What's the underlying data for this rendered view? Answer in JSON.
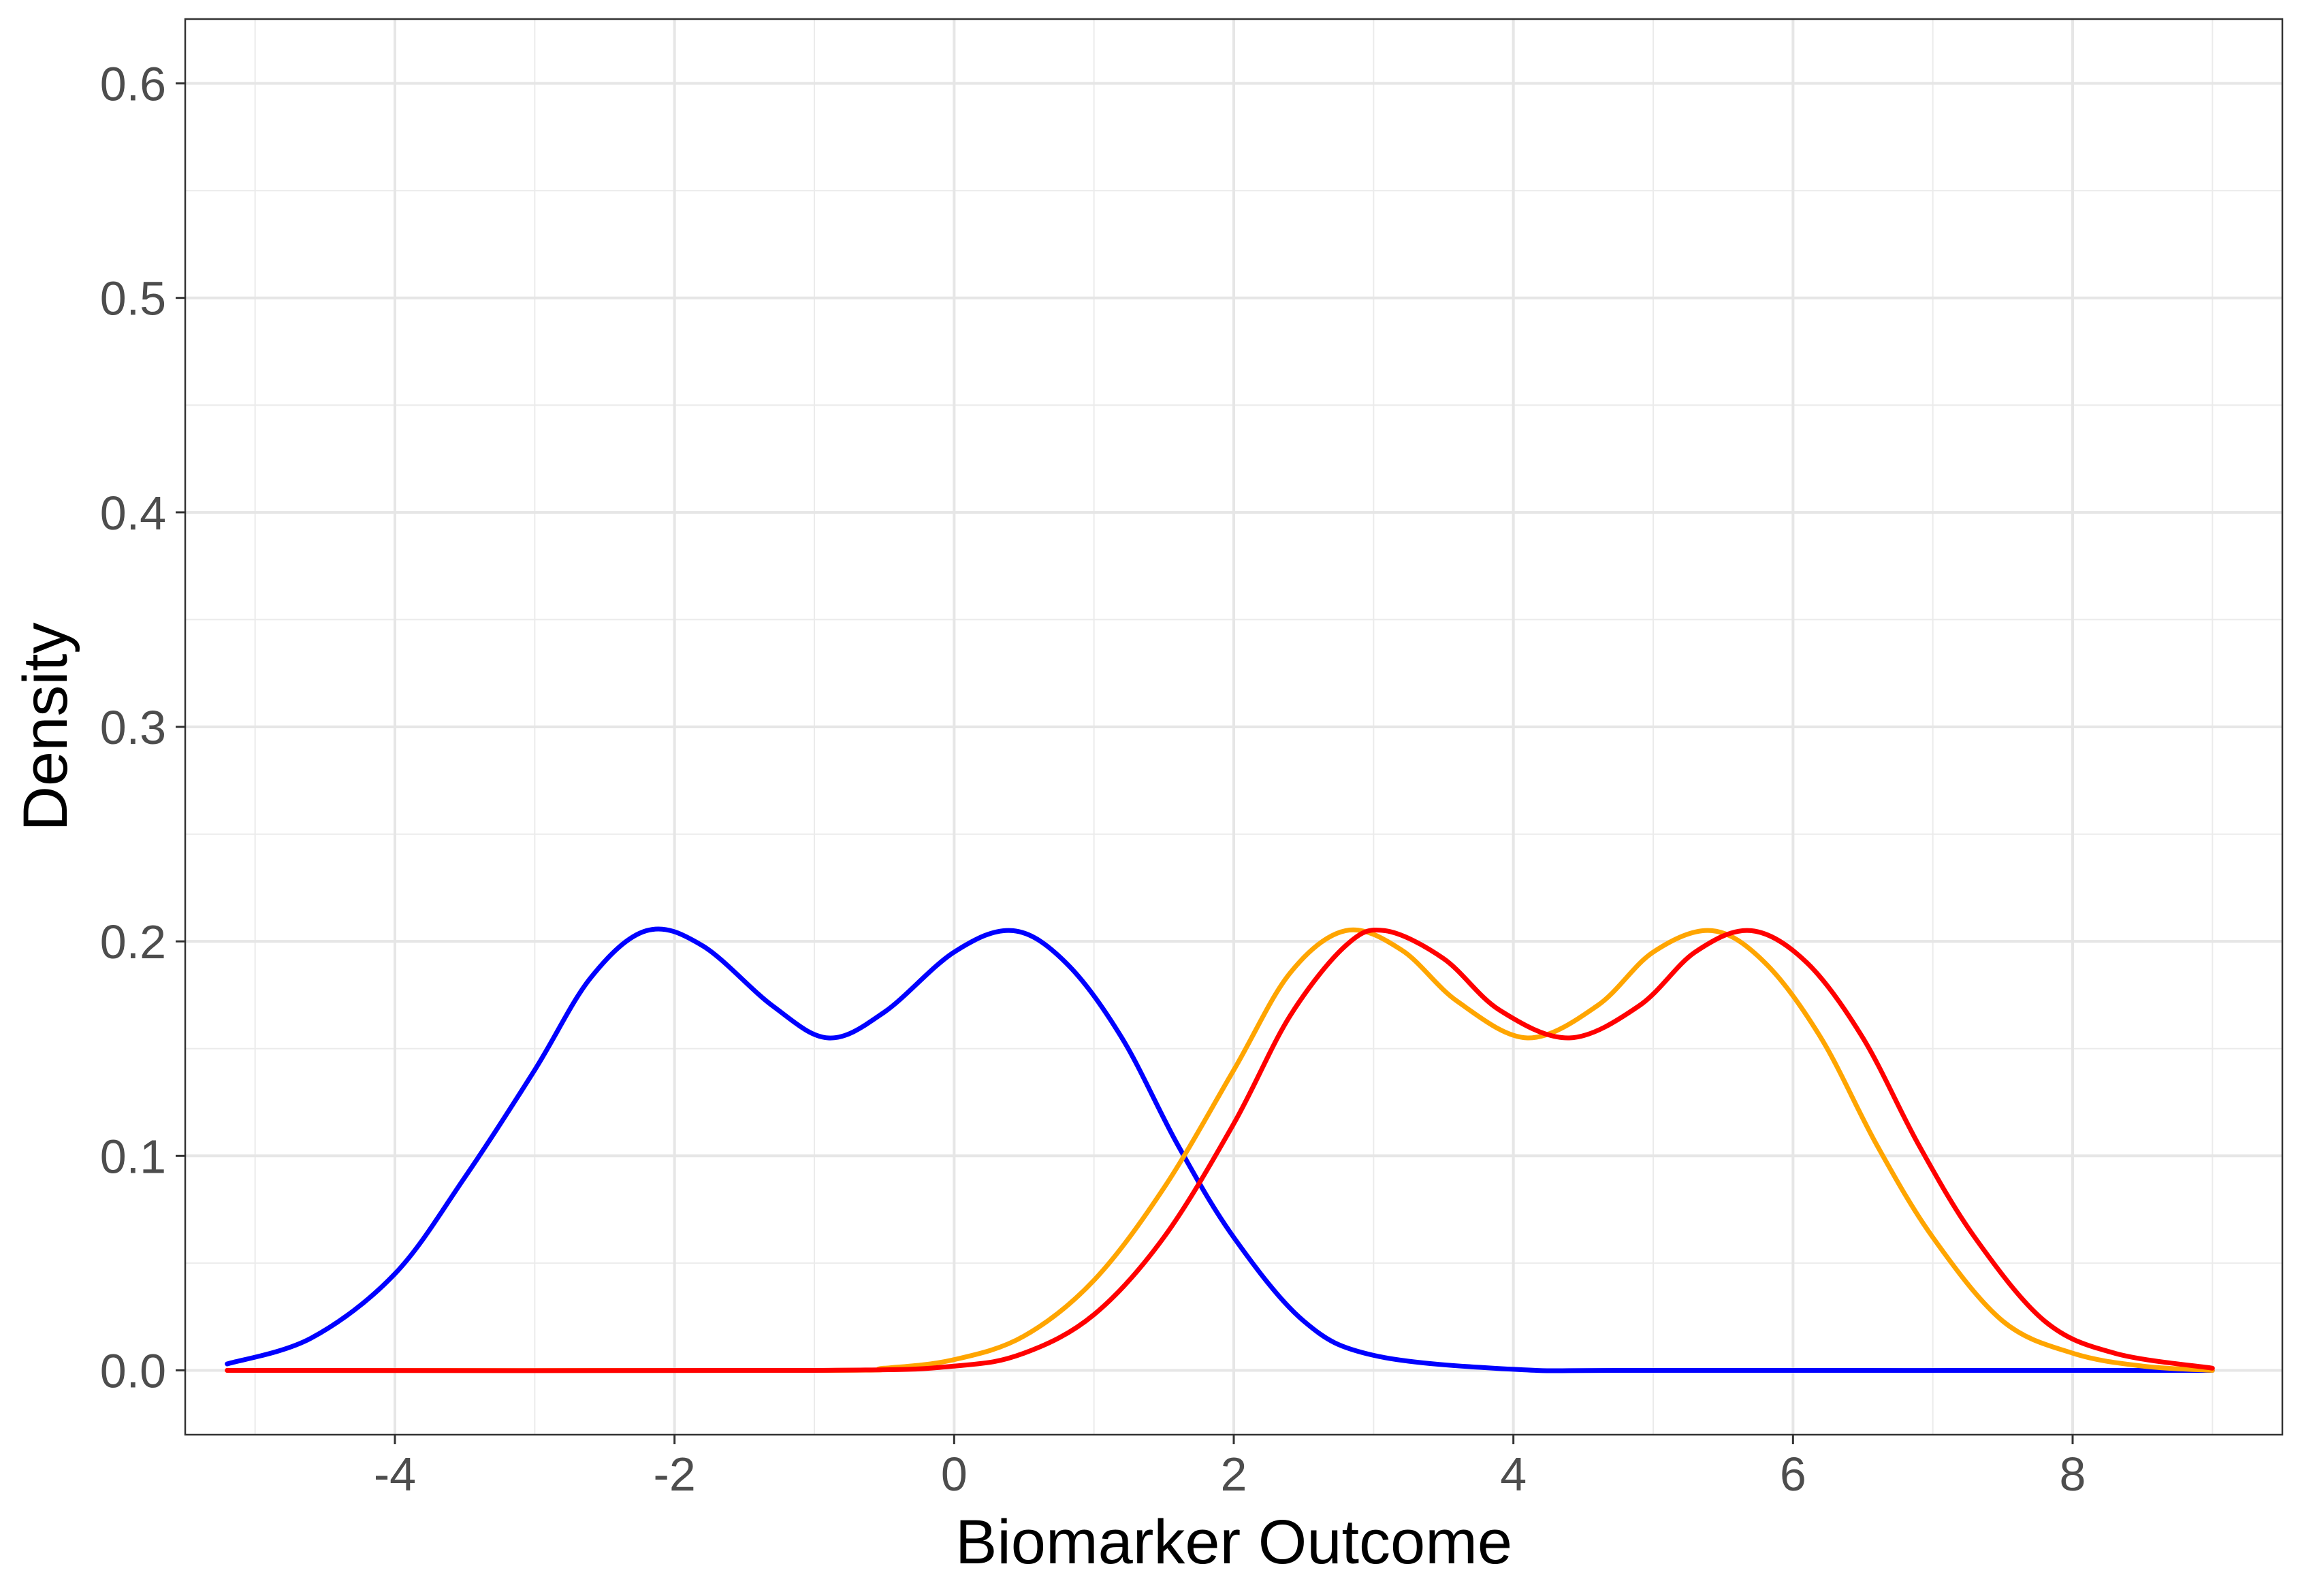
{
  "chart_data": {
    "type": "line",
    "title": "",
    "xlabel": "Biomarker Outcome",
    "ylabel": "Density",
    "xlim": [
      -5.5,
      9.5
    ],
    "ylim": [
      -0.03,
      0.63
    ],
    "x_ticks": [
      -4,
      -2,
      0,
      2,
      4,
      6,
      8
    ],
    "x_tick_labels": [
      "-4",
      "-2",
      "0",
      "2",
      "4",
      "6",
      "8"
    ],
    "y_ticks": [
      0.0,
      0.1,
      0.2,
      0.3,
      0.4,
      0.5,
      0.6
    ],
    "y_tick_labels": [
      "0.0",
      "0.1",
      "0.2",
      "0.3",
      "0.4",
      "0.5",
      "0.6"
    ],
    "grid": true,
    "legend": "none",
    "x_range": [
      -5.2,
      9.0
    ],
    "series": [
      {
        "color": "#0000ff",
        "points": [
          [
            -5.2,
            0.003
          ],
          [
            -4.6,
            0.015
          ],
          [
            -4.0,
            0.045
          ],
          [
            -3.5,
            0.09
          ],
          [
            -3.0,
            0.14
          ],
          [
            -2.6,
            0.183
          ],
          [
            -2.2,
            0.205
          ],
          [
            -1.8,
            0.198
          ],
          [
            -1.3,
            0.17
          ],
          [
            -0.9,
            0.155
          ],
          [
            -0.5,
            0.167
          ],
          [
            0.0,
            0.195
          ],
          [
            0.42,
            0.205
          ],
          [
            0.8,
            0.19
          ],
          [
            1.2,
            0.155
          ],
          [
            1.6,
            0.105
          ],
          [
            2.0,
            0.062
          ],
          [
            2.5,
            0.023
          ],
          [
            3.0,
            0.007
          ],
          [
            4.0,
            0.0005
          ],
          [
            5.0,
            0.0
          ],
          [
            9.0,
            0.0
          ]
        ]
      },
      {
        "color": "#ffa500",
        "points": [
          [
            -5.2,
            0.0
          ],
          [
            -1.0,
            0.0
          ],
          [
            -0.5,
            0.001
          ],
          [
            0.0,
            0.005
          ],
          [
            0.5,
            0.016
          ],
          [
            1.0,
            0.042
          ],
          [
            1.5,
            0.085
          ],
          [
            2.0,
            0.14
          ],
          [
            2.4,
            0.185
          ],
          [
            2.8,
            0.205
          ],
          [
            3.2,
            0.196
          ],
          [
            3.6,
            0.172
          ],
          [
            4.1,
            0.155
          ],
          [
            4.6,
            0.17
          ],
          [
            5.0,
            0.195
          ],
          [
            5.42,
            0.205
          ],
          [
            5.8,
            0.19
          ],
          [
            6.2,
            0.155
          ],
          [
            6.6,
            0.105
          ],
          [
            7.0,
            0.062
          ],
          [
            7.5,
            0.023
          ],
          [
            8.0,
            0.008
          ],
          [
            8.5,
            0.002
          ],
          [
            9.0,
            0.0
          ]
        ]
      },
      {
        "color": "#ff0000",
        "points": [
          [
            -5.2,
            0.0
          ],
          [
            -1.0,
            0.0
          ],
          [
            0.0,
            0.002
          ],
          [
            0.5,
            0.008
          ],
          [
            1.0,
            0.026
          ],
          [
            1.5,
            0.062
          ],
          [
            2.0,
            0.115
          ],
          [
            2.4,
            0.165
          ],
          [
            2.8,
            0.198
          ],
          [
            3.08,
            0.205
          ],
          [
            3.5,
            0.192
          ],
          [
            3.9,
            0.168
          ],
          [
            4.4,
            0.155
          ],
          [
            4.9,
            0.17
          ],
          [
            5.3,
            0.195
          ],
          [
            5.7,
            0.205
          ],
          [
            6.1,
            0.19
          ],
          [
            6.5,
            0.155
          ],
          [
            6.9,
            0.105
          ],
          [
            7.3,
            0.062
          ],
          [
            7.8,
            0.023
          ],
          [
            8.3,
            0.008
          ],
          [
            9.0,
            0.001
          ]
        ]
      }
    ]
  }
}
